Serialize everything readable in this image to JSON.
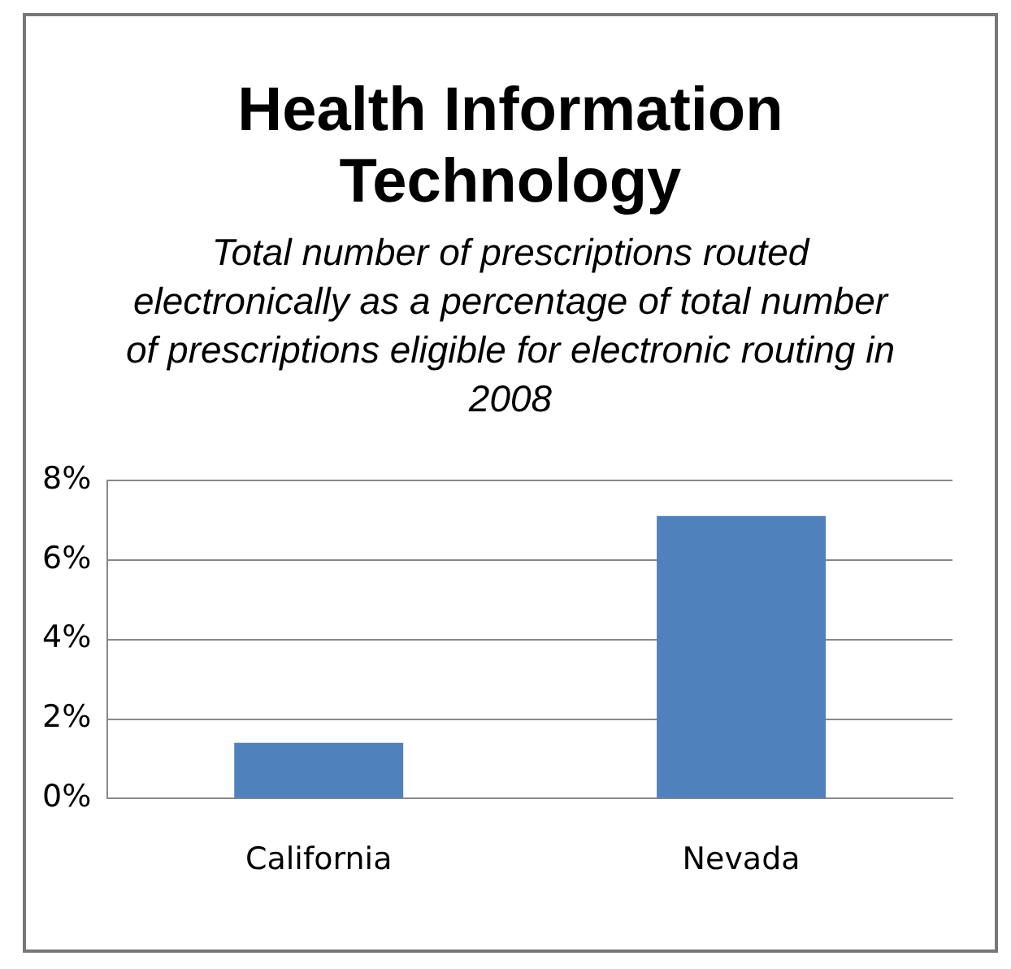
{
  "chart_data": {
    "type": "bar",
    "title": "Health Information Technology",
    "subtitle": "Total number of prescriptions routed electronically as a percentage of total number of prescriptions eligible for electronic routing in 2008",
    "categories": [
      "California",
      "Nevada"
    ],
    "values": [
      1.4,
      7.1
    ],
    "color": "#4f81bd",
    "ylim": [
      0,
      8
    ],
    "yticks": [
      {
        "value": 0,
        "label": "0%"
      },
      {
        "value": 2,
        "label": "2%"
      },
      {
        "value": 4,
        "label": "4%"
      },
      {
        "value": 6,
        "label": "6%"
      },
      {
        "value": 8,
        "label": "8%"
      }
    ],
    "grid": "y",
    "legend": false
  }
}
